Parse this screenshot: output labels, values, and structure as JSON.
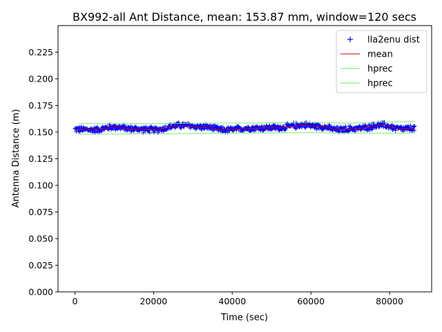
{
  "chart_data": {
    "type": "line",
    "title": "BX992-all Ant Distance, mean: 153.87 mm, window=120 secs",
    "xlabel": "Time (sec)",
    "ylabel": "Antenna Distance (m)",
    "xlim": [
      -4300,
      90700
    ],
    "ylim": [
      0.0,
      0.25
    ],
    "x_ticks": [
      0,
      20000,
      40000,
      60000,
      80000
    ],
    "x_tick_labels": [
      "0",
      "20000",
      "40000",
      "60000",
      "80000"
    ],
    "y_ticks": [
      0.0,
      0.025,
      0.05,
      0.075,
      0.1,
      0.125,
      0.15,
      0.175,
      0.2,
      0.225
    ],
    "y_tick_labels": [
      "0.000",
      "0.025",
      "0.050",
      "0.075",
      "0.100",
      "0.125",
      "0.150",
      "0.175",
      "0.200",
      "0.225"
    ],
    "grid": false,
    "legend_position": "top-right",
    "series": [
      {
        "name": "lla2enu dist",
        "kind": "scatter",
        "marker": "plus",
        "color": "#0000ff",
        "x_range": [
          0,
          86400
        ],
        "y_center_points": [
          [
            0,
            0.1525
          ],
          [
            5000,
            0.1522
          ],
          [
            10000,
            0.1548
          ],
          [
            15000,
            0.153
          ],
          [
            20000,
            0.1522
          ],
          [
            27000,
            0.1563
          ],
          [
            33000,
            0.1548
          ],
          [
            38000,
            0.152
          ],
          [
            45000,
            0.1538
          ],
          [
            52000,
            0.1542
          ],
          [
            58000,
            0.1568
          ],
          [
            62000,
            0.1555
          ],
          [
            67000,
            0.1522
          ],
          [
            72000,
            0.1535
          ],
          [
            78000,
            0.1565
          ],
          [
            83000,
            0.153
          ],
          [
            86400,
            0.1535
          ]
        ],
        "spread": 0.0035
      },
      {
        "name": "mean",
        "kind": "line",
        "color": "#cc0000",
        "points": [
          [
            0,
            0.1525
          ],
          [
            5000,
            0.1522
          ],
          [
            10000,
            0.1545
          ],
          [
            15000,
            0.153
          ],
          [
            20000,
            0.1522
          ],
          [
            27000,
            0.156
          ],
          [
            33000,
            0.1545
          ],
          [
            38000,
            0.1522
          ],
          [
            45000,
            0.1538
          ],
          [
            52000,
            0.154
          ],
          [
            58000,
            0.1565
          ],
          [
            62000,
            0.1553
          ],
          [
            67000,
            0.1524
          ],
          [
            72000,
            0.1535
          ],
          [
            78000,
            0.1562
          ],
          [
            83000,
            0.1532
          ],
          [
            86400,
            0.1535
          ]
        ]
      },
      {
        "name": "hprec",
        "kind": "line",
        "color": "#66ee66",
        "points": [
          [
            1000,
            0.158
          ],
          [
            20000,
            0.158
          ],
          [
            40000,
            0.1585
          ],
          [
            60000,
            0.159
          ],
          [
            70000,
            0.1585
          ],
          [
            80000,
            0.1595
          ],
          [
            86400,
            0.16
          ]
        ]
      },
      {
        "name": "hprec",
        "kind": "line",
        "color": "#66ee66",
        "points": [
          [
            1000,
            0.148
          ],
          [
            20000,
            0.1485
          ],
          [
            40000,
            0.149
          ],
          [
            60000,
            0.1495
          ],
          [
            70000,
            0.149
          ],
          [
            80000,
            0.149
          ],
          [
            86400,
            0.149
          ]
        ]
      }
    ]
  }
}
